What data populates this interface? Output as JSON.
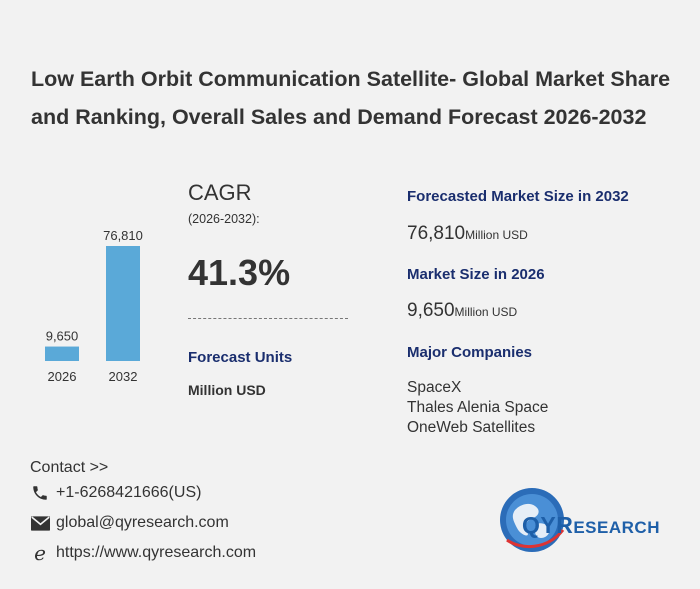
{
  "title": "Low Earth Orbit Communication Satellite- Global Market Share and Ranking, Overall Sales and Demand Forecast 2026-2032",
  "chart_data": {
    "type": "bar",
    "categories": [
      "2026",
      "2032"
    ],
    "values": [
      9650,
      76810
    ],
    "value_labels": [
      "9,650",
      "76,810"
    ],
    "color": "#5aa9d8"
  },
  "cagr": {
    "label": "CAGR",
    "period": "(2026-2032):",
    "value": "41.3%"
  },
  "forecast_units": {
    "heading": "Forecast Units",
    "value": "Million USD"
  },
  "market_2032": {
    "heading": "Forecasted Market Size in 2032",
    "value": "76,810",
    "unit": "Million USD"
  },
  "market_2026": {
    "heading": "Market Size in 2026",
    "value": "9,650",
    "unit": "Million USD"
  },
  "major_companies": {
    "heading": "Major Companies",
    "items": [
      "SpaceX",
      "Thales Alenia Space",
      "OneWeb Satellites"
    ]
  },
  "contact": {
    "title": "Contact >>",
    "phone": "+1-6268421666(US)",
    "email": "global@qyresearch.com",
    "website": "https://www.qyresearch.com"
  },
  "logo": {
    "text_main": "QYR",
    "text_rest": "ESEARCH"
  },
  "colors": {
    "heading_blue": "#1a2e6e",
    "bar": "#5aa9d8",
    "background": "#f2f2f2"
  }
}
